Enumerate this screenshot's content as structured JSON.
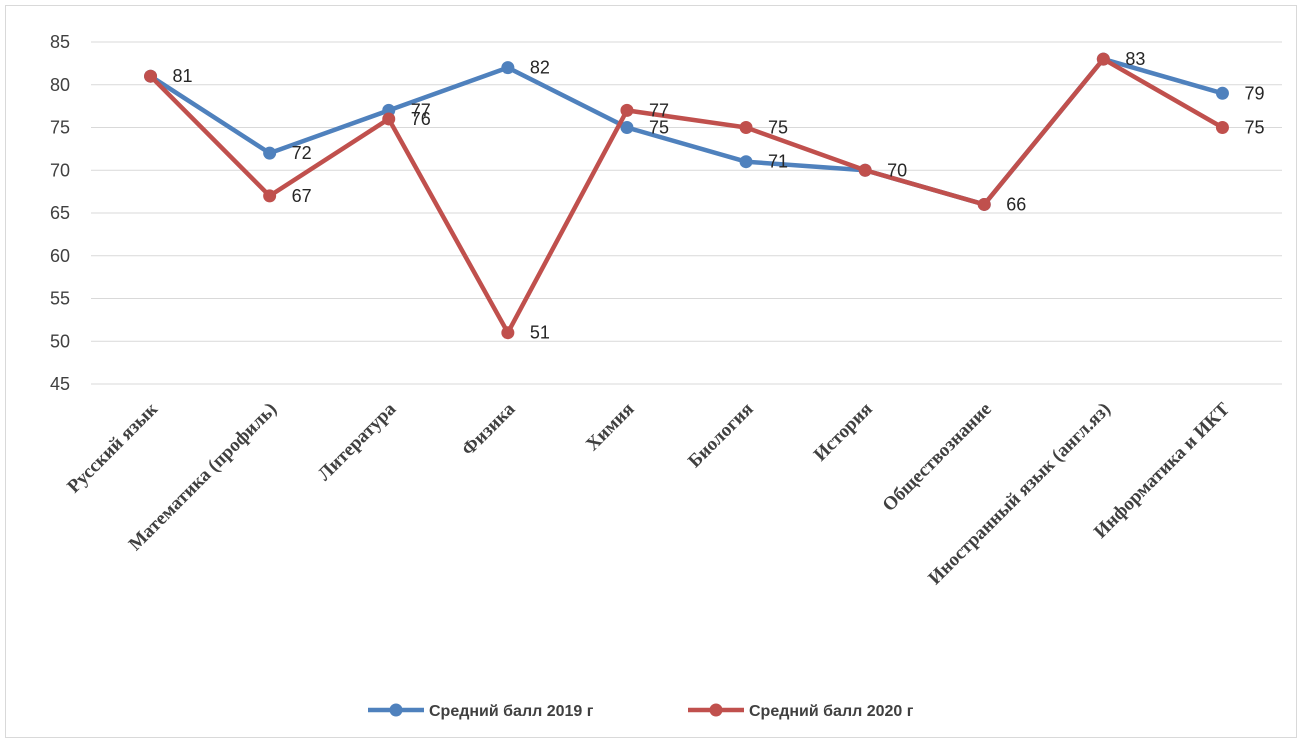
{
  "chart_data": {
    "type": "line",
    "categories": [
      "Русский язык",
      "Математика (профиль)",
      "Литература",
      "Физика",
      "Химия",
      "Биология",
      "История",
      "Обществознание",
      "Иностранный язык (англ.яз)",
      "Информатика и ИКТ"
    ],
    "series": [
      {
        "name": "Средний балл 2019 г",
        "color": "#4f81bd",
        "values": [
          81,
          72,
          77,
          82,
          75,
          71,
          70,
          66,
          83,
          79
        ]
      },
      {
        "name": "Средний балл 2020 г",
        "color": "#c0504d",
        "values": [
          81,
          67,
          76,
          51,
          77,
          75,
          70,
          66,
          83,
          75
        ]
      }
    ],
    "yticks": [
      45,
      50,
      55,
      60,
      65,
      70,
      75,
      80,
      85
    ],
    "ylim": [
      45,
      85
    ],
    "grid": true,
    "legend": "bottom",
    "data_labels": [
      {
        "series": 0,
        "category": 0,
        "text": "81"
      },
      {
        "series": 0,
        "category": 1,
        "text": "72"
      },
      {
        "series": 1,
        "category": 1,
        "text": "67"
      },
      {
        "series": 0,
        "category": 2,
        "text": "77"
      },
      {
        "series": 1,
        "category": 2,
        "text": "76"
      },
      {
        "series": 0,
        "category": 3,
        "text": "82"
      },
      {
        "series": 1,
        "category": 3,
        "text": "51"
      },
      {
        "series": 1,
        "category": 4,
        "text": "77"
      },
      {
        "series": 0,
        "category": 4,
        "text": "75"
      },
      {
        "series": 1,
        "category": 5,
        "text": "75"
      },
      {
        "series": 0,
        "category": 5,
        "text": "71"
      },
      {
        "series": 0,
        "category": 6,
        "text": "70"
      },
      {
        "series": 0,
        "category": 7,
        "text": "66"
      },
      {
        "series": 0,
        "category": 8,
        "text": "83"
      },
      {
        "series": 0,
        "category": 9,
        "text": "79"
      },
      {
        "series": 1,
        "category": 9,
        "text": "75"
      }
    ]
  }
}
